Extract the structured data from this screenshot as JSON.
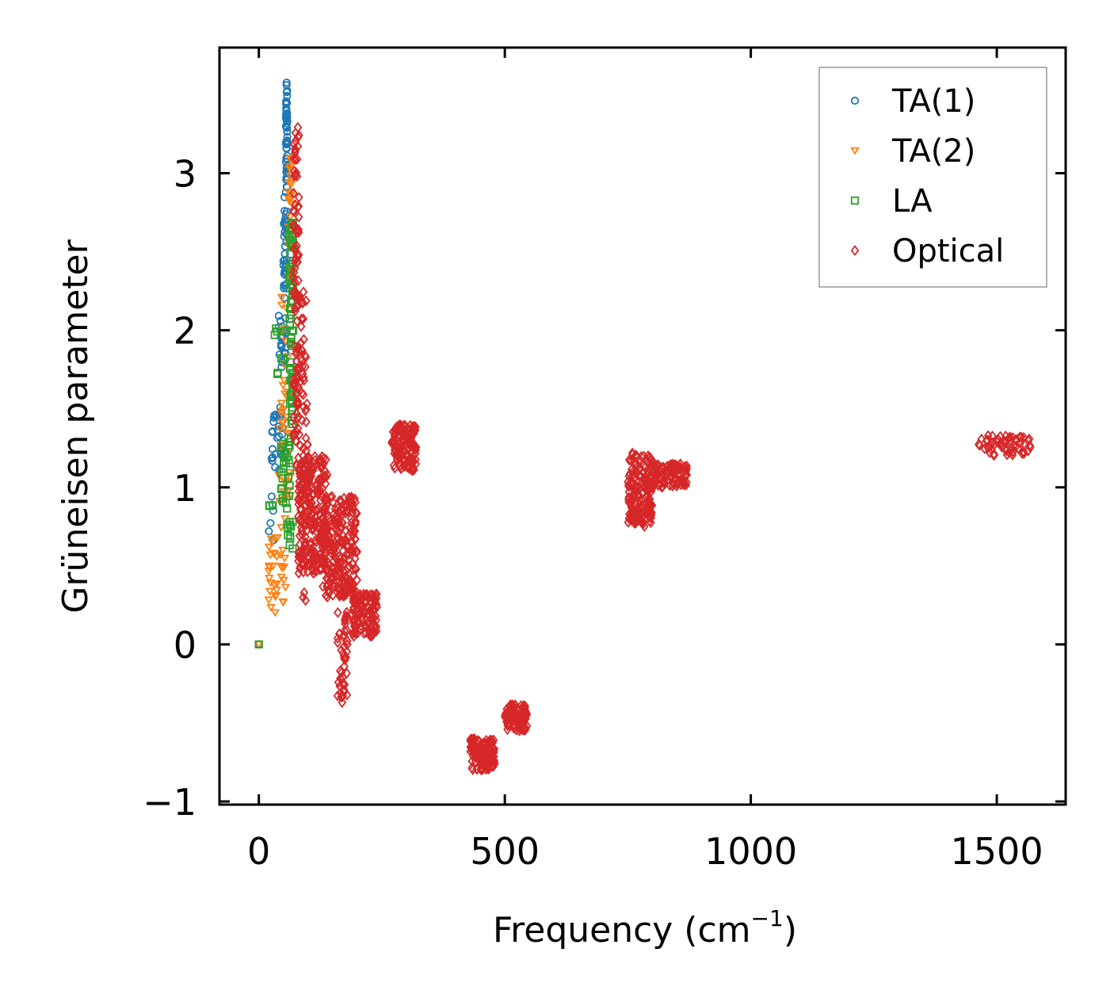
{
  "chart_data": {
    "type": "scatter",
    "xlabel": "Frequency (cm",
    "xlabel_sup": "−1",
    "xlabel_end": ")",
    "ylabel": "Grüneisen parameter",
    "xlim": [
      -80,
      1640
    ],
    "ylim": [
      -1.02,
      3.8
    ],
    "xticks": [
      0,
      500,
      1000,
      1500
    ],
    "xtick_labels": [
      "0",
      "500",
      "1000",
      "1500"
    ],
    "yticks": [
      -1,
      0,
      1,
      2,
      3
    ],
    "ytick_labels": [
      "−1",
      "0",
      "1",
      "2",
      "3"
    ],
    "legend_position": "top-right",
    "series": [
      {
        "name": "TA(1)",
        "marker": "circle",
        "color": "#1f77b4",
        "clusters": [
          {
            "x": [
              55,
              58
            ],
            "y": [
              2.9,
              3.58
            ],
            "n": 55
          },
          {
            "x": [
              50,
              57
            ],
            "y": [
              2.2,
              2.9
            ],
            "n": 40
          },
          {
            "x": [
              40,
              55
            ],
            "y": [
              1.75,
              2.1
            ],
            "n": 22
          },
          {
            "x": [
              25,
              50
            ],
            "y": [
              1.1,
              1.55
            ],
            "n": 28
          },
          {
            "x": [
              18,
              30
            ],
            "y": [
              0.65,
              0.95
            ],
            "n": 6
          }
        ],
        "points": [
          [
            0,
            0
          ]
        ]
      },
      {
        "name": "TA(2)",
        "marker": "triangle-down",
        "color": "#ff7f0e",
        "clusters": [
          {
            "x": [
              60,
              68
            ],
            "y": [
              2.3,
              3.1
            ],
            "n": 28
          },
          {
            "x": [
              45,
              62
            ],
            "y": [
              1.4,
              2.3
            ],
            "n": 20
          },
          {
            "x": [
              40,
              65
            ],
            "y": [
              0.7,
              1.4
            ],
            "n": 22
          },
          {
            "x": [
              20,
              55
            ],
            "y": [
              0.2,
              0.7
            ],
            "n": 35
          }
        ],
        "points": [
          [
            0,
            0
          ]
        ]
      },
      {
        "name": "LA",
        "marker": "square",
        "color": "#2ca02c",
        "clusters": [
          {
            "x": [
              62,
              70
            ],
            "y": [
              1.3,
              2.7
            ],
            "n": 70
          },
          {
            "x": [
              30,
              50
            ],
            "y": [
              1.55,
              2.05
            ],
            "n": 8
          },
          {
            "x": [
              45,
              66
            ],
            "y": [
              0.9,
              1.3
            ],
            "n": 25
          },
          {
            "x": [
              55,
              70
            ],
            "y": [
              0.6,
              0.9
            ],
            "n": 12
          },
          {
            "x": [
              18,
              30
            ],
            "y": [
              0.88,
              0.95
            ],
            "n": 3
          }
        ],
        "points": [
          [
            0,
            0
          ]
        ]
      },
      {
        "name": "Optical",
        "marker": "diamond",
        "color": "#d62728",
        "clusters": [
          {
            "x": [
              70,
              82
            ],
            "y": [
              1.3,
              3.3
            ],
            "n": 90
          },
          {
            "x": [
              75,
              100
            ],
            "y": [
              1.0,
              2.3
            ],
            "n": 60
          },
          {
            "x": [
              80,
              140
            ],
            "y": [
              0.45,
              1.2
            ],
            "n": 260
          },
          {
            "x": [
              130,
              200
            ],
            "y": [
              0.3,
              0.95
            ],
            "n": 240
          },
          {
            "x": [
              160,
              180
            ],
            "y": [
              -0.37,
              0.35
            ],
            "n": 50
          },
          {
            "x": [
              190,
              240
            ],
            "y": [
              0.05,
              0.33
            ],
            "n": 110
          },
          {
            "x": [
              270,
              320
            ],
            "y": [
              1.1,
              1.4
            ],
            "n": 130
          },
          {
            "x": [
              430,
              480
            ],
            "y": [
              -0.8,
              -0.6
            ],
            "n": 120
          },
          {
            "x": [
              500,
              545
            ],
            "y": [
              -0.55,
              -0.38
            ],
            "n": 90
          },
          {
            "x": [
              750,
              800
            ],
            "y": [
              0.75,
              1.22
            ],
            "n": 170
          },
          {
            "x": [
              800,
              870
            ],
            "y": [
              1.0,
              1.15
            ],
            "n": 90
          },
          {
            "x": [
              1460,
              1570
            ],
            "y": [
              1.2,
              1.33
            ],
            "n": 60
          }
        ],
        "points": [
          [
            90,
            0.3
          ],
          [
            92,
            0.33
          ],
          [
            95,
            0.28
          ]
        ]
      }
    ]
  }
}
